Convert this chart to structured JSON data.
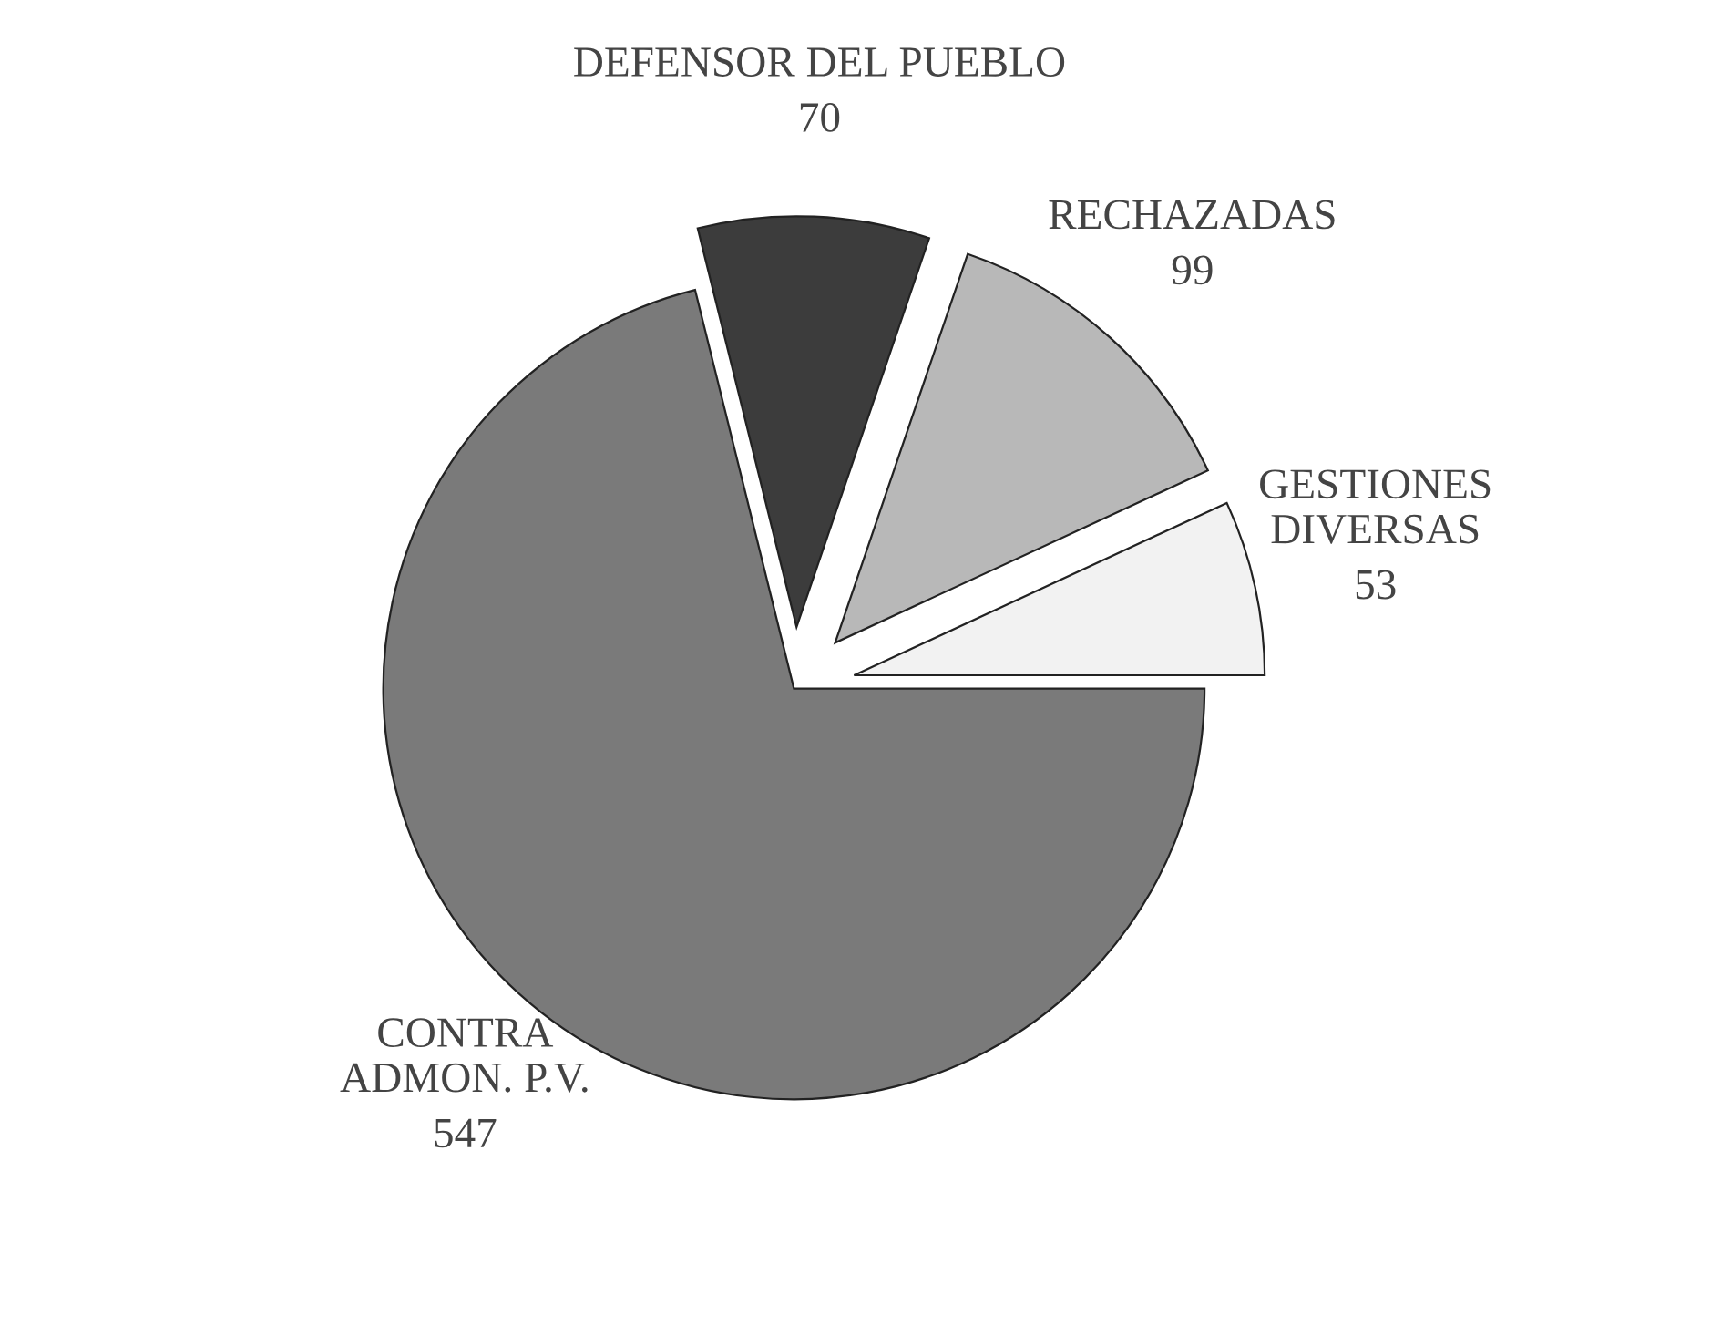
{
  "chart_data": {
    "type": "pie",
    "categories": [
      "GESTIONES\nDIVERSAS",
      "RECHAZADAS",
      "DEFENSOR DEL PUEBLO",
      "CONTRA\nADMON. P.V."
    ],
    "values": [
      53,
      99,
      70,
      547
    ],
    "colors": [
      "#f2f2f2",
      "#b8b8b8",
      "#3c3c3c",
      "#7a7a7a"
    ],
    "data_labels": true
  }
}
